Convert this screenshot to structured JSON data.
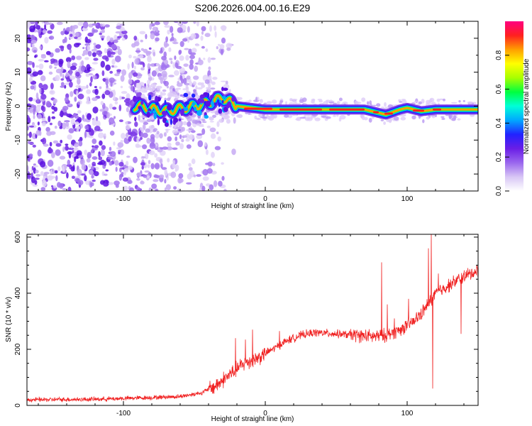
{
  "figure_title": "S206.2026.004.00.16.E29",
  "chart_data": [
    {
      "type": "heatmap",
      "name": "spectrogram",
      "xlabel": "Height of straight line (km)",
      "ylabel": "Frequency (Hz)",
      "xlim": [
        -168,
        150
      ],
      "ylim": [
        -25,
        25
      ],
      "xticks": [
        -100,
        0,
        100
      ],
      "yticks": [
        -20,
        -10,
        0,
        10,
        20
      ],
      "colorbar": {
        "label": "Normalized spectral amplitude",
        "range": [
          0,
          1
        ],
        "ticks": [
          0.0,
          0.2,
          0.4,
          0.6,
          0.8
        ],
        "colormap": [
          "#ffffff",
          "#d8c6f5",
          "#9a66ee",
          "#6a1ee6",
          "#2222ff",
          "#00a8ff",
          "#00ffd8",
          "#00ff40",
          "#a8ff00",
          "#ffff00",
          "#ffa000",
          "#ff2020",
          "#ff0080"
        ]
      },
      "ridge": {
        "description_points_km_hz": [
          [
            -90,
            0
          ],
          [
            -70,
            -1.5
          ],
          [
            -50,
            0
          ],
          [
            -40,
            1
          ],
          [
            -30,
            2.5
          ],
          [
            -20,
            0
          ],
          [
            0,
            -1
          ],
          [
            20,
            -1
          ],
          [
            50,
            -1
          ],
          [
            70,
            -1
          ],
          [
            75,
            -1.5
          ],
          [
            85,
            -2.5
          ],
          [
            95,
            -1
          ],
          [
            100,
            -0.5
          ],
          [
            110,
            -1.5
          ],
          [
            120,
            -1
          ],
          [
            150,
            -1
          ]
        ]
      }
    },
    {
      "type": "line",
      "name": "snr",
      "xlabel": "Height of straight line (km)",
      "ylabel": "SNR (10 * v/v)",
      "xlim": [
        -168,
        150
      ],
      "ylim": [
        0,
        610
      ],
      "xticks": [
        -100,
        0,
        100
      ],
      "yticks": [
        0,
        200,
        400,
        600
      ],
      "color": "#f02020",
      "trend_km_snr": [
        [
          -168,
          20
        ],
        [
          -120,
          22
        ],
        [
          -80,
          28
        ],
        [
          -60,
          32
        ],
        [
          -45,
          45
        ],
        [
          -35,
          70
        ],
        [
          -25,
          110
        ],
        [
          -15,
          150
        ],
        [
          -5,
          170
        ],
        [
          5,
          200
        ],
        [
          15,
          230
        ],
        [
          25,
          250
        ],
        [
          35,
          260
        ],
        [
          50,
          255
        ],
        [
          65,
          250
        ],
        [
          75,
          245
        ],
        [
          85,
          250
        ],
        [
          95,
          270
        ],
        [
          105,
          300
        ],
        [
          112,
          340
        ],
        [
          120,
          400
        ],
        [
          130,
          430
        ],
        [
          140,
          460
        ],
        [
          150,
          480
        ]
      ],
      "spikes_km_snr": [
        [
          -21,
          240
        ],
        [
          -14,
          235
        ],
        [
          -9,
          270
        ],
        [
          10,
          265
        ],
        [
          82,
          510
        ],
        [
          86,
          360
        ],
        [
          91,
          310
        ],
        [
          101,
          380
        ],
        [
          115,
          560
        ],
        [
          117,
          610
        ],
        [
          118,
          60
        ],
        [
          122,
          470
        ],
        [
          138,
          255
        ]
      ]
    }
  ]
}
